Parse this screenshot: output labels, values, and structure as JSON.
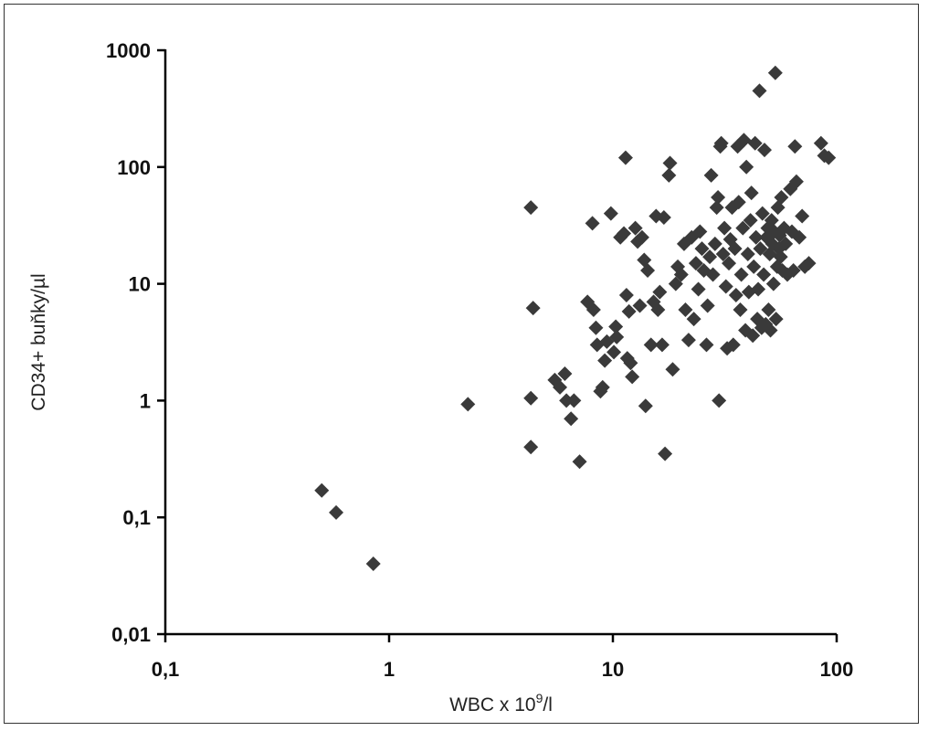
{
  "chart_data": {
    "type": "scatter",
    "xlabel": "WBC x 10",
    "xlabel_sup": "9",
    "xlabel_suffix": "/l",
    "ylabel": "CD34+ buňky/µl",
    "x_scale": "log",
    "y_scale": "log",
    "xlim": [
      0.1,
      100
    ],
    "ylim": [
      0.01,
      1000
    ],
    "x_ticks": [
      0.1,
      1,
      10,
      100
    ],
    "x_tick_labels": [
      "0,1",
      "1",
      "10",
      "100"
    ],
    "y_ticks": [
      0.01,
      0.1,
      1,
      10,
      100,
      1000
    ],
    "y_tick_labels": [
      "0,01",
      "0,1",
      "1",
      "10",
      "100",
      "1000"
    ],
    "grid": false,
    "legend": "none",
    "marker": "diamond",
    "marker_color": "#3a3a3a",
    "series": [
      {
        "points": [
          [
            0.5,
            0.17
          ],
          [
            0.58,
            0.11
          ],
          [
            0.85,
            0.04
          ],
          [
            2.25,
            0.93
          ],
          [
            4.3,
            45
          ],
          [
            4.4,
            6.2
          ],
          [
            4.3,
            1.05
          ],
          [
            4.3,
            0.4
          ],
          [
            5.5,
            1.5
          ],
          [
            5.8,
            1.3
          ],
          [
            6.1,
            1.7
          ],
          [
            6.2,
            1.0
          ],
          [
            6.5,
            0.7
          ],
          [
            6.7,
            1.0
          ],
          [
            7.1,
            0.3
          ],
          [
            7.7,
            7.0
          ],
          [
            8.1,
            33
          ],
          [
            8.2,
            6.0
          ],
          [
            8.4,
            4.2
          ],
          [
            8.5,
            3.0
          ],
          [
            8.8,
            1.2
          ],
          [
            9.0,
            1.3
          ],
          [
            9.2,
            2.2
          ],
          [
            9.4,
            3.2
          ],
          [
            9.8,
            40
          ],
          [
            10.1,
            2.6
          ],
          [
            10.3,
            4.3
          ],
          [
            10.4,
            3.5
          ],
          [
            10.8,
            25
          ],
          [
            11.2,
            27
          ],
          [
            11.4,
            120
          ],
          [
            11.5,
            8.0
          ],
          [
            11.6,
            2.3
          ],
          [
            11.8,
            5.8
          ],
          [
            12.0,
            2.1
          ],
          [
            12.2,
            1.6
          ],
          [
            12.6,
            30
          ],
          [
            12.9,
            23
          ],
          [
            13.2,
            6.5
          ],
          [
            13.5,
            25
          ],
          [
            13.8,
            16
          ],
          [
            14.0,
            0.9
          ],
          [
            14.3,
            13
          ],
          [
            14.8,
            3.0
          ],
          [
            15.2,
            7.0
          ],
          [
            15.6,
            38
          ],
          [
            15.9,
            6.0
          ],
          [
            16.2,
            8.5
          ],
          [
            16.6,
            3.0
          ],
          [
            16.9,
            37
          ],
          [
            17.1,
            0.35
          ],
          [
            17.8,
            85
          ],
          [
            18.0,
            108
          ],
          [
            18.5,
            1.85
          ],
          [
            19.1,
            10
          ],
          [
            19.5,
            14
          ],
          [
            20.2,
            12
          ],
          [
            20.8,
            22
          ],
          [
            21.1,
            6.0
          ],
          [
            21.8,
            3.3
          ],
          [
            22.5,
            25
          ],
          [
            23.0,
            5.0
          ],
          [
            23.5,
            15
          ],
          [
            24.1,
            9.0
          ],
          [
            24.5,
            28
          ],
          [
            25.0,
            20
          ],
          [
            25.5,
            13
          ],
          [
            26.2,
            3.0
          ],
          [
            26.5,
            6.5
          ],
          [
            27.1,
            17
          ],
          [
            27.5,
            85
          ],
          [
            28.0,
            12
          ],
          [
            28.6,
            22
          ],
          [
            29.1,
            45
          ],
          [
            29.5,
            55
          ],
          [
            29.8,
            1.0
          ],
          [
            30.2,
            150
          ],
          [
            30.5,
            160
          ],
          [
            31.1,
            18
          ],
          [
            31.5,
            30
          ],
          [
            32.0,
            9.5
          ],
          [
            32.4,
            2.8
          ],
          [
            33.0,
            15
          ],
          [
            33.5,
            24
          ],
          [
            34.1,
            45
          ],
          [
            34.5,
            3.0
          ],
          [
            35.1,
            20
          ],
          [
            35.5,
            8.0
          ],
          [
            36.1,
            150
          ],
          [
            36.5,
            50
          ],
          [
            37.1,
            6.0
          ],
          [
            37.5,
            12
          ],
          [
            38.1,
            30
          ],
          [
            38.5,
            170
          ],
          [
            39.1,
            4.0
          ],
          [
            39.5,
            100
          ],
          [
            40.1,
            18
          ],
          [
            40.5,
            8.5
          ],
          [
            41.2,
            35
          ],
          [
            41.6,
            60
          ],
          [
            42.2,
            3.6
          ],
          [
            42.6,
            14
          ],
          [
            43.2,
            160
          ],
          [
            43.6,
            25
          ],
          [
            44.2,
            5.0
          ],
          [
            44.6,
            9.0
          ],
          [
            45.2,
            450
          ],
          [
            45.6,
            20
          ],
          [
            46.2,
            4.2
          ],
          [
            46.6,
            40
          ],
          [
            47.2,
            12
          ],
          [
            47.6,
            140
          ],
          [
            48.2,
            4.5
          ],
          [
            48.6,
            25
          ],
          [
            49.2,
            30
          ],
          [
            49.6,
            6.0
          ],
          [
            50.2,
            18
          ],
          [
            50.6,
            4.0
          ],
          [
            51.2,
            35
          ],
          [
            51.6,
            22
          ],
          [
            52.2,
            10
          ],
          [
            52.6,
            28
          ],
          [
            53.2,
            640
          ],
          [
            53.6,
            5.0
          ],
          [
            54.2,
            14
          ],
          [
            54.6,
            45
          ],
          [
            55.2,
            20
          ],
          [
            55.6,
            26
          ],
          [
            56.2,
            17
          ],
          [
            56.6,
            55
          ],
          [
            57.2,
            13
          ],
          [
            58.2,
            30
          ],
          [
            59.2,
            22
          ],
          [
            60.2,
            12
          ],
          [
            62.1,
            65
          ],
          [
            63.1,
            28
          ],
          [
            64.1,
            13
          ],
          [
            65.1,
            150
          ],
          [
            66.1,
            75
          ],
          [
            68.1,
            25
          ],
          [
            70.1,
            38
          ],
          [
            72.1,
            14
          ],
          [
            75.1,
            15
          ],
          [
            85.1,
            160
          ],
          [
            88.1,
            125
          ],
          [
            92.1,
            120
          ]
        ]
      }
    ]
  }
}
